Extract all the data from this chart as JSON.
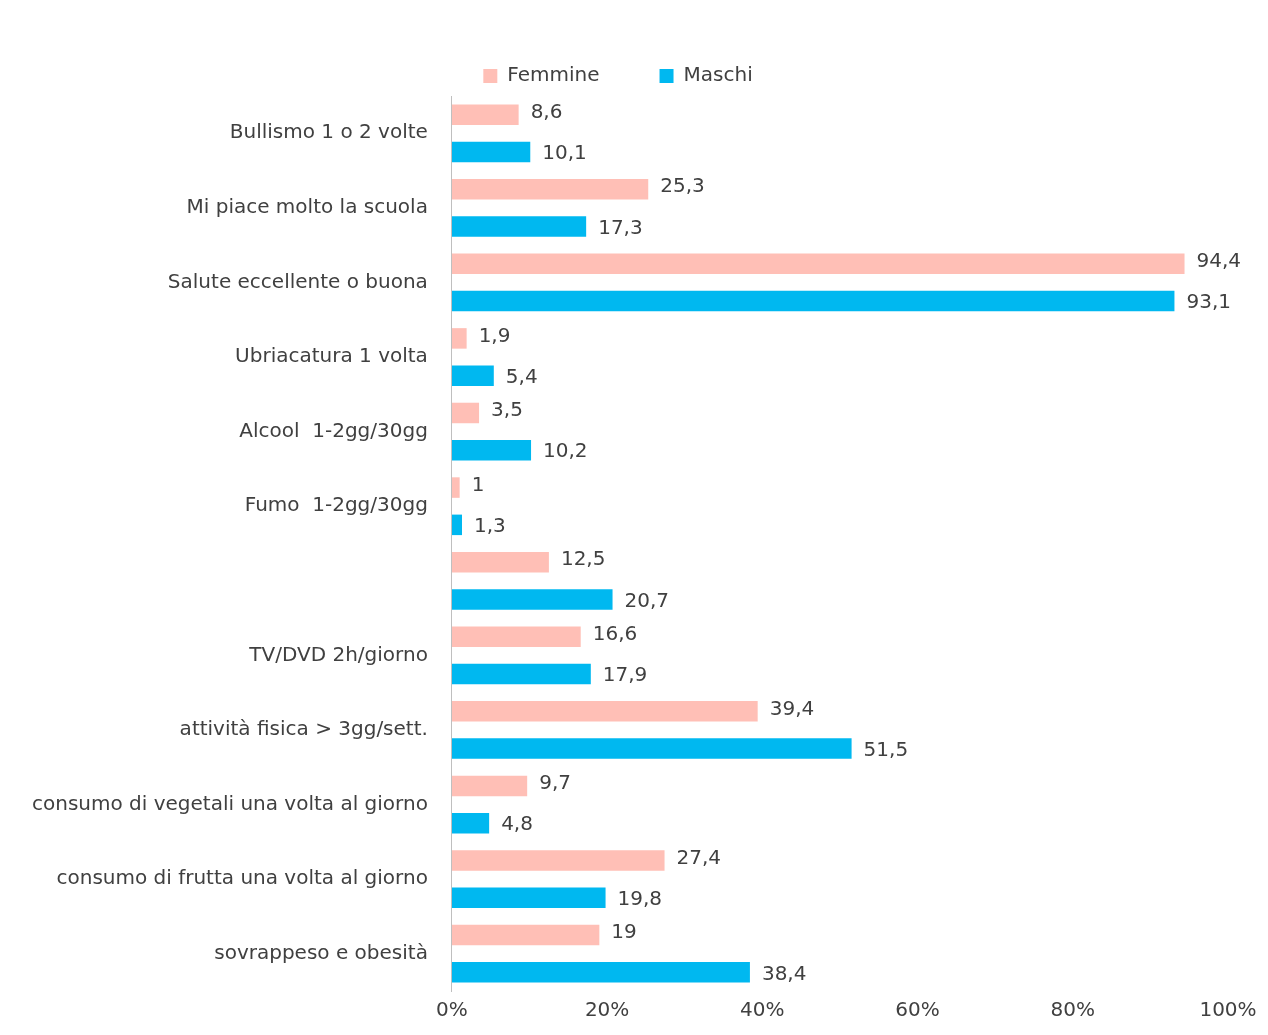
{
  "chart_data": {
    "type": "bar",
    "orientation": "horizontal",
    "legend": "top",
    "grid": false,
    "categories": [
      "Bullismo 1 o 2 volte",
      "Mi piace molto la scuola",
      "Salute eccellente o buona",
      "Ubriacatura 1 volta",
      "Alcool  1-2gg/30gg",
      "Fumo  1-2gg/30gg",
      null,
      "TV/DVD 2h/giorno",
      "attività fisica > 3gg/sett.",
      "consumo di vegetali una volta al giorno",
      "consumo di frutta una volta al giorno",
      "sovrappeso e obesità"
    ],
    "series": [
      {
        "name": "Femmine",
        "color": "#ffbfb6",
        "values": [
          8.6,
          25.3,
          94.4,
          1.9,
          3.5,
          1,
          12.5,
          16.6,
          39.4,
          9.7,
          27.4,
          19
        ],
        "value_labels": [
          "8,6",
          "25,3",
          "94,4",
          "1,9",
          "3,5",
          "1",
          "12,5",
          "16,6",
          "39,4",
          "9,7",
          "27,4",
          "19"
        ]
      },
      {
        "name": "Maschi",
        "color": "#00b8f0",
        "values": [
          10.1,
          17.3,
          93.1,
          5.4,
          10.2,
          1.3,
          20.7,
          17.9,
          51.5,
          4.8,
          19.8,
          38.4
        ],
        "value_labels": [
          "10,1",
          "17,3",
          "93,1",
          "5,4",
          "10,2",
          "1,3",
          "20,7",
          "17,9",
          "51,5",
          "4,8",
          "19,8",
          "38,4"
        ]
      }
    ],
    "xlim": [
      0,
      100
    ],
    "xticks": [
      {
        "value": 0,
        "label": "0%"
      },
      {
        "value": 20,
        "label": "20%"
      },
      {
        "value": 40,
        "label": "40%"
      },
      {
        "value": 60,
        "label": "60%"
      },
      {
        "value": 80,
        "label": "80%"
      },
      {
        "value": 100,
        "label": "100%"
      }
    ]
  }
}
